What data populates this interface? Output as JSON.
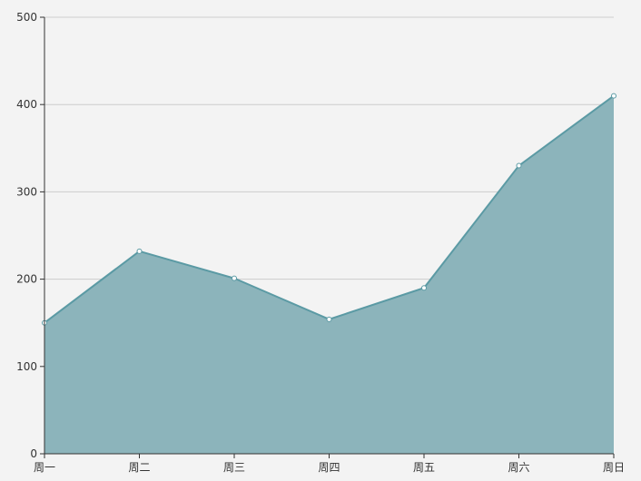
{
  "chart_data": {
    "type": "area",
    "categories": [
      "周一",
      "周二",
      "周三",
      "周四",
      "周五",
      "周六",
      "周日"
    ],
    "series": [
      {
        "values": [
          150,
          232,
          201,
          154,
          190,
          330,
          410
        ]
      }
    ],
    "yticks": [
      "0",
      "100",
      "200",
      "300",
      "400",
      "500"
    ],
    "ylim": [
      0,
      500
    ],
    "grid": true,
    "legend": "none",
    "colors": {
      "area": "#8cb4bb",
      "line": "#5b9aa4",
      "point_fill": "#ffffff"
    }
  }
}
